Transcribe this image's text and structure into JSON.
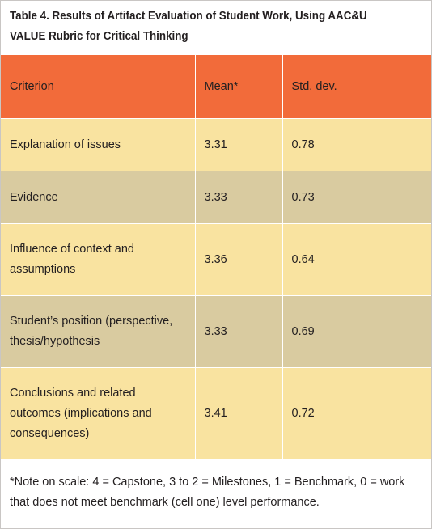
{
  "caption": "Table 4. Results of Artifact Evaluation of Student Work, Using AAC&U VALUE Rubric for Critical Thinking",
  "table": {
    "headers": [
      "Criterion",
      "Mean*",
      "Std. dev."
    ],
    "rows": [
      {
        "criterion": "Explanation of issues",
        "mean": "3.31",
        "std_dev": "0.78"
      },
      {
        "criterion": "Evidence",
        "mean": "3.33",
        "std_dev": "0.73"
      },
      {
        "criterion": "Influence of context and assumptions",
        "mean": "3.36",
        "std_dev": "0.64"
      },
      {
        "criterion": "Student’s position (perspective, thesis/hypothesis",
        "mean": "3.33",
        "std_dev": "0.69"
      },
      {
        "criterion": "Conclusions and related outcomes (implications and consequences)",
        "mean": "3.41",
        "std_dev": "0.72"
      }
    ]
  },
  "note": "*Note on scale: 4 = Capstone, 3 to 2 = Milestones, 1 = Benchmark, 0 = work that does not meet benchmark (cell one) level performance.",
  "colors": {
    "header": "#f26b3a",
    "row_light": "#f9e3a0",
    "row_dark": "#d9cba0",
    "border": "#c9c6c4"
  }
}
